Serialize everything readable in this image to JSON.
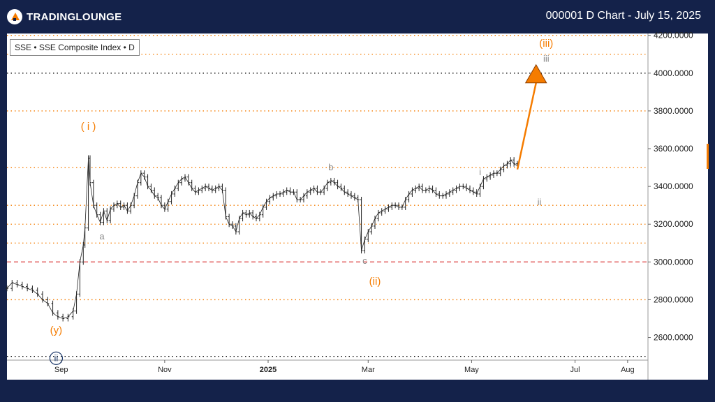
{
  "header": {
    "brand_main": "TRADINGLOUNGE",
    "title": "000001 D Chart - July 15, 2025"
  },
  "legend_box": "SSE • SSE Composite Index • D",
  "colors": {
    "background": "#14224a",
    "accent": "#f57c00",
    "price_line": "#222222",
    "wave_gray": "#8a8a8a",
    "wave_navy": "#1f3a6b",
    "support_red": "#e05050"
  },
  "chart_data": {
    "type": "line",
    "title": "000001 D Chart - July 15, 2025",
    "xlabel": "",
    "ylabel": "",
    "ylim": [
      2480,
      4210
    ],
    "x_ticks": [
      {
        "label": "Sep",
        "day": 14,
        "bold": false
      },
      {
        "label": "Nov",
        "day": 75,
        "bold": false
      },
      {
        "label": "2025",
        "day": 136,
        "bold": true
      },
      {
        "label": "Mar",
        "day": 195,
        "bold": false
      },
      {
        "label": "May",
        "day": 256,
        "bold": false
      },
      {
        "label": "Jul",
        "day": 317,
        "bold": false
      },
      {
        "label": "Aug",
        "day": 348,
        "bold": false
      }
    ],
    "xlim": [
      -18,
      360
    ],
    "y_ticks": [
      "4200.0000",
      "4000.0000",
      "3800.0000",
      "3600.0000",
      "3400.0000",
      "3200.0000",
      "3000.0000",
      "2800.0000",
      "2600.0000"
    ],
    "y_tick_values": [
      4200,
      4000,
      3800,
      3600,
      3400,
      3200,
      3000,
      2800,
      2600
    ],
    "levels": [
      {
        "value": 4200,
        "style": "orange"
      },
      {
        "value": 4100,
        "style": "orange"
      },
      {
        "value": 4000,
        "style": "black"
      },
      {
        "value": 3800,
        "style": "orange"
      },
      {
        "value": 3500,
        "style": "orange"
      },
      {
        "value": 3300,
        "style": "orange"
      },
      {
        "value": 3200,
        "style": "orange"
      },
      {
        "value": 3100,
        "style": "orange"
      },
      {
        "value": 3000,
        "style": "red"
      },
      {
        "value": 2800,
        "style": "orange"
      },
      {
        "value": 2500,
        "style": "black"
      }
    ],
    "series": [
      {
        "values": [
          [
            -18,
            2860
          ],
          [
            -15,
            2890
          ],
          [
            -12,
            2880
          ],
          [
            -9,
            2870
          ],
          [
            -6,
            2860
          ],
          [
            -3,
            2850
          ],
          [
            0,
            2830
          ],
          [
            3,
            2800
          ],
          [
            6,
            2780
          ],
          [
            9,
            2730
          ],
          [
            12,
            2710
          ],
          [
            15,
            2700
          ],
          [
            18,
            2710
          ],
          [
            21,
            2740
          ],
          [
            23,
            2830
          ],
          [
            25,
            3000
          ],
          [
            27,
            3090
          ],
          [
            28,
            3180
          ],
          [
            30,
            3550
          ],
          [
            31,
            3420
          ],
          [
            33,
            3300
          ],
          [
            35,
            3250
          ],
          [
            37,
            3210
          ],
          [
            39,
            3270
          ],
          [
            41,
            3220
          ],
          [
            43,
            3280
          ],
          [
            45,
            3300
          ],
          [
            47,
            3310
          ],
          [
            49,
            3290
          ],
          [
            51,
            3300
          ],
          [
            53,
            3270
          ],
          [
            55,
            3300
          ],
          [
            57,
            3350
          ],
          [
            59,
            3420
          ],
          [
            61,
            3470
          ],
          [
            63,
            3450
          ],
          [
            65,
            3400
          ],
          [
            67,
            3380
          ],
          [
            69,
            3350
          ],
          [
            71,
            3340
          ],
          [
            73,
            3300
          ],
          [
            75,
            3280
          ],
          [
            77,
            3320
          ],
          [
            79,
            3360
          ],
          [
            81,
            3390
          ],
          [
            83,
            3420
          ],
          [
            85,
            3440
          ],
          [
            87,
            3450
          ],
          [
            89,
            3420
          ],
          [
            91,
            3390
          ],
          [
            93,
            3370
          ],
          [
            95,
            3380
          ],
          [
            97,
            3390
          ],
          [
            99,
            3400
          ],
          [
            101,
            3390
          ],
          [
            103,
            3380
          ],
          [
            105,
            3390
          ],
          [
            107,
            3400
          ],
          [
            109,
            3380
          ],
          [
            111,
            3240
          ],
          [
            113,
            3200
          ],
          [
            115,
            3190
          ],
          [
            117,
            3160
          ],
          [
            119,
            3230
          ],
          [
            121,
            3260
          ],
          [
            123,
            3250
          ],
          [
            125,
            3260
          ],
          [
            127,
            3240
          ],
          [
            129,
            3230
          ],
          [
            131,
            3250
          ],
          [
            133,
            3290
          ],
          [
            135,
            3320
          ],
          [
            137,
            3340
          ],
          [
            139,
            3350
          ],
          [
            141,
            3360
          ],
          [
            143,
            3360
          ],
          [
            145,
            3370
          ],
          [
            147,
            3380
          ],
          [
            149,
            3370
          ],
          [
            151,
            3370
          ],
          [
            153,
            3330
          ],
          [
            155,
            3330
          ],
          [
            157,
            3350
          ],
          [
            159,
            3370
          ],
          [
            161,
            3380
          ],
          [
            163,
            3390
          ],
          [
            165,
            3370
          ],
          [
            167,
            3370
          ],
          [
            169,
            3390
          ],
          [
            171,
            3420
          ],
          [
            173,
            3430
          ],
          [
            175,
            3420
          ],
          [
            177,
            3400
          ],
          [
            179,
            3390
          ],
          [
            181,
            3370
          ],
          [
            183,
            3360
          ],
          [
            185,
            3350
          ],
          [
            187,
            3340
          ],
          [
            189,
            3330
          ],
          [
            191,
            3060
          ],
          [
            193,
            3120
          ],
          [
            195,
            3160
          ],
          [
            197,
            3190
          ],
          [
            199,
            3230
          ],
          [
            201,
            3260
          ],
          [
            203,
            3270
          ],
          [
            205,
            3280
          ],
          [
            207,
            3290
          ],
          [
            209,
            3300
          ],
          [
            211,
            3300
          ],
          [
            213,
            3290
          ],
          [
            215,
            3290
          ],
          [
            217,
            3330
          ],
          [
            219,
            3360
          ],
          [
            221,
            3380
          ],
          [
            223,
            3390
          ],
          [
            225,
            3400
          ],
          [
            227,
            3380
          ],
          [
            229,
            3380
          ],
          [
            231,
            3390
          ],
          [
            233,
            3380
          ],
          [
            235,
            3360
          ],
          [
            237,
            3350
          ],
          [
            239,
            3350
          ],
          [
            241,
            3360
          ],
          [
            243,
            3370
          ],
          [
            245,
            3380
          ],
          [
            247,
            3390
          ],
          [
            249,
            3400
          ],
          [
            251,
            3400
          ],
          [
            253,
            3390
          ],
          [
            255,
            3380
          ],
          [
            257,
            3370
          ],
          [
            259,
            3360
          ],
          [
            261,
            3400
          ],
          [
            263,
            3440
          ],
          [
            265,
            3450
          ],
          [
            267,
            3460
          ],
          [
            269,
            3470
          ],
          [
            271,
            3470
          ],
          [
            273,
            3490
          ],
          [
            275,
            3510
          ],
          [
            277,
            3520
          ],
          [
            279,
            3540
          ],
          [
            281,
            3520
          ],
          [
            283,
            3510
          ]
        ]
      }
    ],
    "arrow": {
      "from": [
        283,
        3490
      ],
      "to": [
        294,
        4000
      ]
    },
    "annotations": [
      {
        "text": "( i )",
        "day": 30,
        "price": 3700,
        "color": "orange"
      },
      {
        "text": "a",
        "day": 38,
        "price": 3120,
        "color": "gray"
      },
      {
        "text": "(y)",
        "day": 11,
        "price": 2620,
        "color": "orange"
      },
      {
        "text": "ii",
        "day": 11,
        "price": 2475,
        "color": "navy",
        "circled": true
      },
      {
        "text": "b",
        "day": 173,
        "price": 3485,
        "color": "gray"
      },
      {
        "text": "c",
        "day": 193,
        "price": 2990,
        "color": "gray"
      },
      {
        "text": "(ii)",
        "day": 199,
        "price": 2880,
        "color": "orange"
      },
      {
        "text": "i",
        "day": 261,
        "price": 3460,
        "color": "gray"
      },
      {
        "text": "ii",
        "day": 296,
        "price": 3300,
        "color": "gray"
      },
      {
        "text": "(iii)",
        "day": 300,
        "price": 4140,
        "color": "orange"
      },
      {
        "text": "iii",
        "day": 300,
        "price": 4060,
        "color": "gray"
      }
    ]
  }
}
